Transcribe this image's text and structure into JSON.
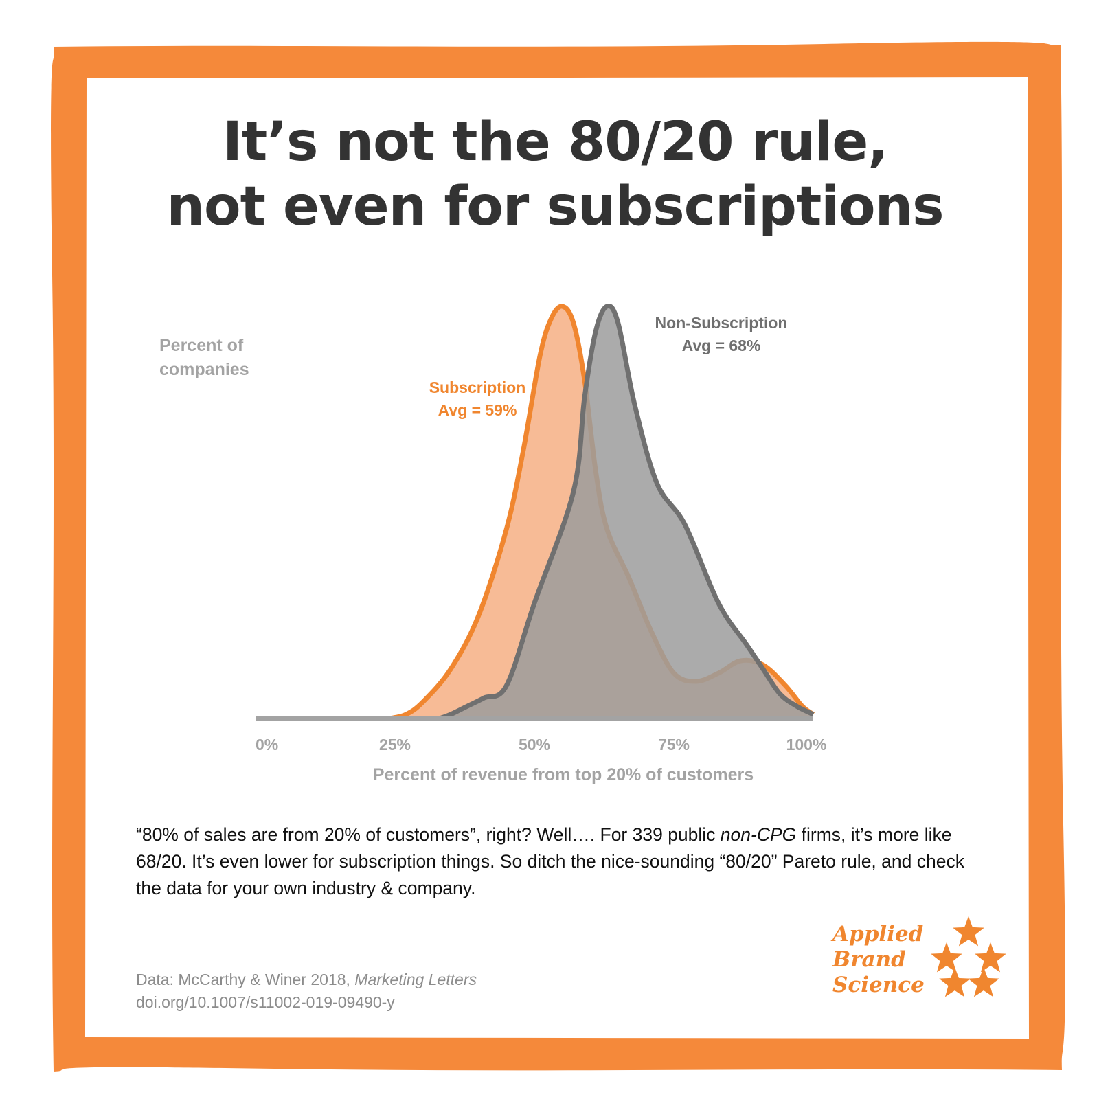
{
  "title": {
    "line1": "It’s not the 80/20 rule,",
    "line2": "not even for subscriptions"
  },
  "chart_data": {
    "type": "area",
    "ylabel_lines": [
      "Percent of",
      "companies"
    ],
    "xlabel": "Percent of revenue from top 20% of customers",
    "xlim": [
      0,
      100
    ],
    "ylim": [
      0,
      1
    ],
    "x_ticks": [
      {
        "value": 0,
        "label": "0%"
      },
      {
        "value": 25,
        "label": "25%"
      },
      {
        "value": 50,
        "label": "50%"
      },
      {
        "value": 75,
        "label": "75%"
      },
      {
        "value": 100,
        "label": "100%"
      }
    ],
    "grid": false,
    "series": [
      {
        "name": "Subscription",
        "annotation_lines": [
          "Subscription",
          "Avg = 59%"
        ],
        "color": "#f0862f",
        "fill": "#f7bb96",
        "points": [
          [
            24,
            0
          ],
          [
            27,
            0.01
          ],
          [
            30,
            0.04
          ],
          [
            35,
            0.12
          ],
          [
            40,
            0.25
          ],
          [
            45,
            0.46
          ],
          [
            48,
            0.65
          ],
          [
            51,
            0.88
          ],
          [
            53,
            0.97
          ],
          [
            55,
            1.0
          ],
          [
            57,
            0.96
          ],
          [
            59,
            0.82
          ],
          [
            61,
            0.6
          ],
          [
            63,
            0.46
          ],
          [
            67,
            0.34
          ],
          [
            71,
            0.21
          ],
          [
            75,
            0.11
          ],
          [
            79,
            0.09
          ],
          [
            83,
            0.11
          ],
          [
            87,
            0.14
          ],
          [
            91,
            0.13
          ],
          [
            95,
            0.08
          ],
          [
            98,
            0.03
          ],
          [
            100,
            0.01
          ]
        ]
      },
      {
        "name": "Non-Subscription",
        "annotation_lines": [
          "Non-Subscription",
          "Avg = 68%"
        ],
        "color": "#707070",
        "fill": "#9c9c9c",
        "points": [
          [
            33,
            0
          ],
          [
            35,
            0.01
          ],
          [
            38,
            0.03
          ],
          [
            41,
            0.05
          ],
          [
            45,
            0.08
          ],
          [
            50,
            0.28
          ],
          [
            57,
            0.55
          ],
          [
            59,
            0.78
          ],
          [
            61,
            0.94
          ],
          [
            63,
            1.0
          ],
          [
            65,
            0.96
          ],
          [
            68,
            0.76
          ],
          [
            72,
            0.57
          ],
          [
            77,
            0.47
          ],
          [
            83,
            0.28
          ],
          [
            88,
            0.18
          ],
          [
            91,
            0.12
          ],
          [
            94,
            0.06
          ],
          [
            97,
            0.03
          ],
          [
            100,
            0.01
          ]
        ]
      }
    ]
  },
  "body": {
    "part1": "“80% of sales are from 20% of customers”, right? Well…. For 339 public ",
    "emph": "non-CPG",
    "part2": " firms, it’s more like 68/20. It’s even lower for subscription things. So ditch the nice-sounding “80/20” Pareto rule, and check the data for your own industry & company."
  },
  "source": {
    "prefix": "Data: McCarthy & Winer 2018, ",
    "journal": "Marketing Letters",
    "doi": "doi.org/10.1007/s11002-019-09490-y"
  },
  "brand": {
    "lines": [
      "Applied",
      "Brand",
      "Science"
    ]
  },
  "colors": {
    "border": "#f5893a",
    "title": "#333333",
    "axis": "#a3a3a3"
  }
}
